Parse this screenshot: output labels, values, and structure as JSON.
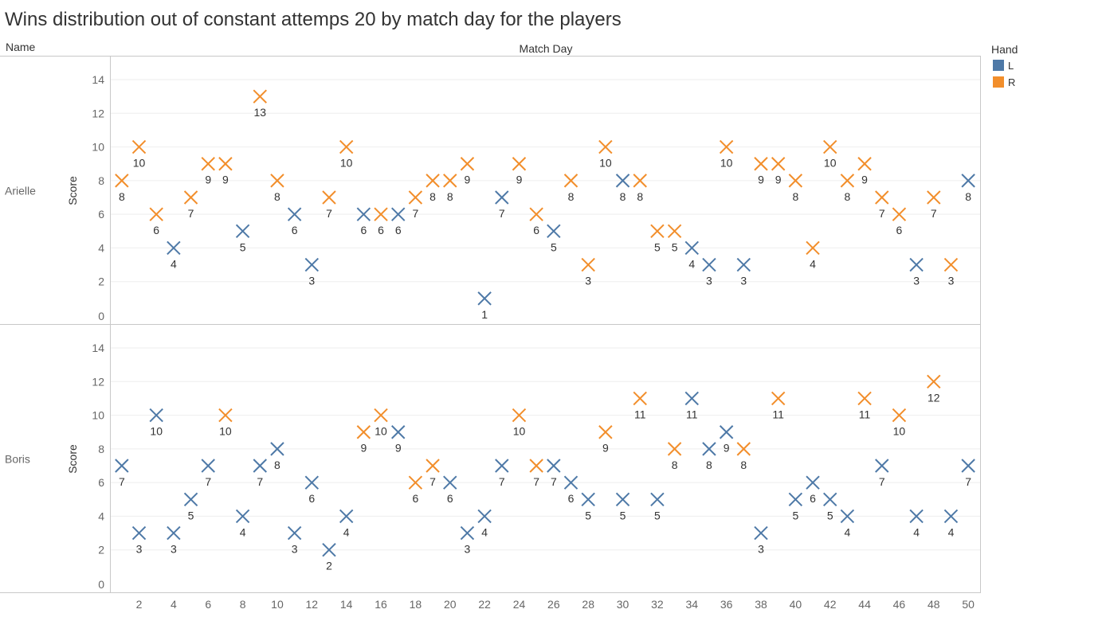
{
  "header": {
    "title": "Wins distribution out of constant attemps 20 by match day for the players",
    "row_header": "Name",
    "column_header": "Match Day"
  },
  "legend": {
    "title": "Hand",
    "items": [
      {
        "label": "L",
        "color": "#4e79a7"
      },
      {
        "label": "R",
        "color": "#f28e2b"
      }
    ]
  },
  "chart_data": {
    "type": "scatter",
    "marker": "x",
    "x_label": "Match Day",
    "y_label": "Score",
    "xlim": [
      0.5,
      50.5
    ],
    "ylim": [
      0,
      15
    ],
    "x_ticks": [
      2,
      4,
      6,
      8,
      10,
      12,
      14,
      16,
      18,
      20,
      22,
      24,
      26,
      28,
      30,
      32,
      34,
      36,
      38,
      40,
      42,
      44,
      46,
      48,
      50
    ],
    "y_ticks": [
      0,
      2,
      4,
      6,
      8,
      10,
      12,
      14
    ],
    "color_by": "Hand",
    "colors": {
      "L": "#4e79a7",
      "R": "#f28e2b"
    },
    "grid": true,
    "legend_position": "top-right",
    "panels": [
      {
        "name": "Arielle",
        "x": [
          1,
          2,
          3,
          4,
          5,
          6,
          7,
          8,
          9,
          10,
          11,
          12,
          13,
          14,
          15,
          16,
          17,
          18,
          19,
          20,
          21,
          22,
          23,
          24,
          25,
          26,
          27,
          28,
          29,
          30,
          31,
          32,
          33,
          34,
          35,
          36,
          37,
          38,
          39,
          40,
          41,
          42,
          43,
          44,
          45,
          46,
          47,
          48,
          49,
          50
        ],
        "y": [
          8,
          10,
          6,
          4,
          7,
          9,
          9,
          5,
          13,
          8,
          6,
          3,
          7,
          10,
          6,
          6,
          6,
          7,
          8,
          8,
          9,
          1,
          7,
          9,
          6,
          5,
          8,
          3,
          10,
          8,
          8,
          5,
          5,
          4,
          3,
          10,
          3,
          9,
          9,
          8,
          4,
          10,
          8,
          9,
          7,
          6,
          3,
          7,
          3,
          8
        ],
        "hand": [
          "R",
          "R",
          "R",
          "L",
          "R",
          "R",
          "R",
          "L",
          "R",
          "R",
          "L",
          "L",
          "R",
          "R",
          "L",
          "R",
          "L",
          "R",
          "R",
          "R",
          "R",
          "L",
          "L",
          "R",
          "R",
          "L",
          "R",
          "R",
          "R",
          "L",
          "R",
          "R",
          "R",
          "L",
          "L",
          "R",
          "L",
          "R",
          "R",
          "R",
          "R",
          "R",
          "R",
          "R",
          "R",
          "R",
          "L",
          "R",
          "R",
          "L"
        ]
      },
      {
        "name": "Boris",
        "x": [
          1,
          2,
          3,
          4,
          5,
          6,
          7,
          8,
          9,
          10,
          11,
          12,
          13,
          14,
          15,
          16,
          17,
          18,
          19,
          20,
          21,
          22,
          23,
          24,
          25,
          26,
          27,
          28,
          29,
          30,
          31,
          32,
          33,
          34,
          35,
          36,
          37,
          38,
          39,
          40,
          41,
          42,
          43,
          44,
          45,
          46,
          47,
          48,
          49,
          50
        ],
        "y": [
          7,
          3,
          10,
          3,
          5,
          7,
          10,
          4,
          7,
          8,
          3,
          6,
          2,
          4,
          9,
          10,
          9,
          6,
          7,
          6,
          3,
          4,
          7,
          10,
          7,
          7,
          6,
          5,
          9,
          5,
          11,
          5,
          8,
          11,
          8,
          9,
          8,
          3,
          11,
          5,
          6,
          5,
          4,
          11,
          7,
          10,
          4,
          12,
          4,
          7
        ],
        "hand": [
          "L",
          "L",
          "L",
          "L",
          "L",
          "L",
          "R",
          "L",
          "L",
          "L",
          "L",
          "L",
          "L",
          "L",
          "R",
          "R",
          "L",
          "R",
          "R",
          "L",
          "L",
          "L",
          "L",
          "R",
          "R",
          "L",
          "L",
          "L",
          "R",
          "L",
          "R",
          "L",
          "R",
          "L",
          "L",
          "L",
          "R",
          "L",
          "R",
          "L",
          "L",
          "L",
          "L",
          "R",
          "L",
          "R",
          "L",
          "R",
          "L",
          "L"
        ]
      }
    ]
  }
}
